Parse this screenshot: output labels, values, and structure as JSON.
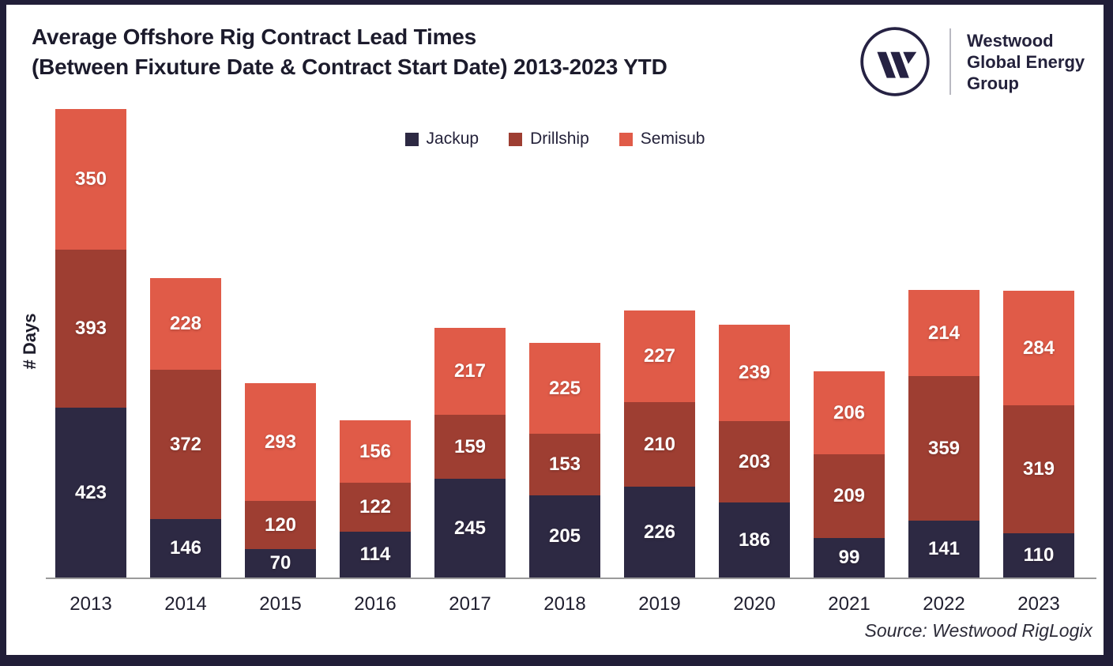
{
  "header": {
    "title_line1": "Average Offshore Rig Contract Lead Times",
    "title_line2": "(Between Fixuture Date & Contract Start Date) 2013-2023 YTD"
  },
  "brand": {
    "line1": "Westwood",
    "line2": "Global Energy",
    "line3": "Group",
    "logo_icon": "westwood-w-circle-icon",
    "color": "#262243"
  },
  "chart_data": {
    "type": "bar",
    "stacked": true,
    "title": "Average Offshore Rig Contract Lead Times (Between Fixuture Date & Contract Start Date) 2013-2023 YTD",
    "ylabel": "# Days",
    "xlabel": "",
    "grid": false,
    "legend_position": "top-center",
    "value_labels": "white numbers centered on each segment",
    "categories": [
      "2013",
      "2014",
      "2015",
      "2016",
      "2017",
      "2018",
      "2019",
      "2020",
      "2021",
      "2022",
      "2023"
    ],
    "series": [
      {
        "name": "Jackup",
        "color": "#2d2943",
        "values": [
          423,
          146,
          70,
          114,
          245,
          205,
          226,
          186,
          99,
          141,
          110
        ]
      },
      {
        "name": "Drillship",
        "color": "#9e3e32",
        "values": [
          393,
          372,
          120,
          122,
          159,
          153,
          210,
          203,
          209,
          359,
          319
        ]
      },
      {
        "name": "Semisub",
        "color": "#e05b48",
        "values": [
          350,
          228,
          293,
          156,
          217,
          225,
          227,
          239,
          206,
          214,
          284
        ]
      }
    ],
    "axis_color": "#9b9b9b"
  },
  "footer": {
    "source": "Source: Westwood RigLogix"
  },
  "colors": {
    "frame_border": "#211e38",
    "background": "#ffffff",
    "title_text": "#1c1b2c"
  }
}
